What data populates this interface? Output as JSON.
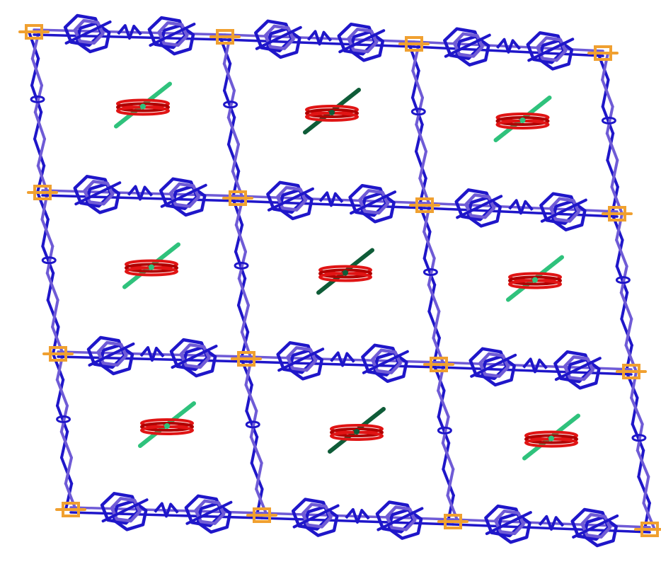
{
  "image": {
    "subject": "crystal-structure-framework",
    "colors": {
      "background": "#ffffff",
      "framework_bond": "#1f16c9",
      "framework_bond_light": "#6f5bd6",
      "metal_node": "#f0a030",
      "guest_ring": "#e01414",
      "guest_ring_dark": "#b00000",
      "guest_rod_light": "#2fc27c",
      "guest_rod_dark": "#0f5c38"
    },
    "grid": {
      "rows": 3,
      "cols": 3
    }
  }
}
